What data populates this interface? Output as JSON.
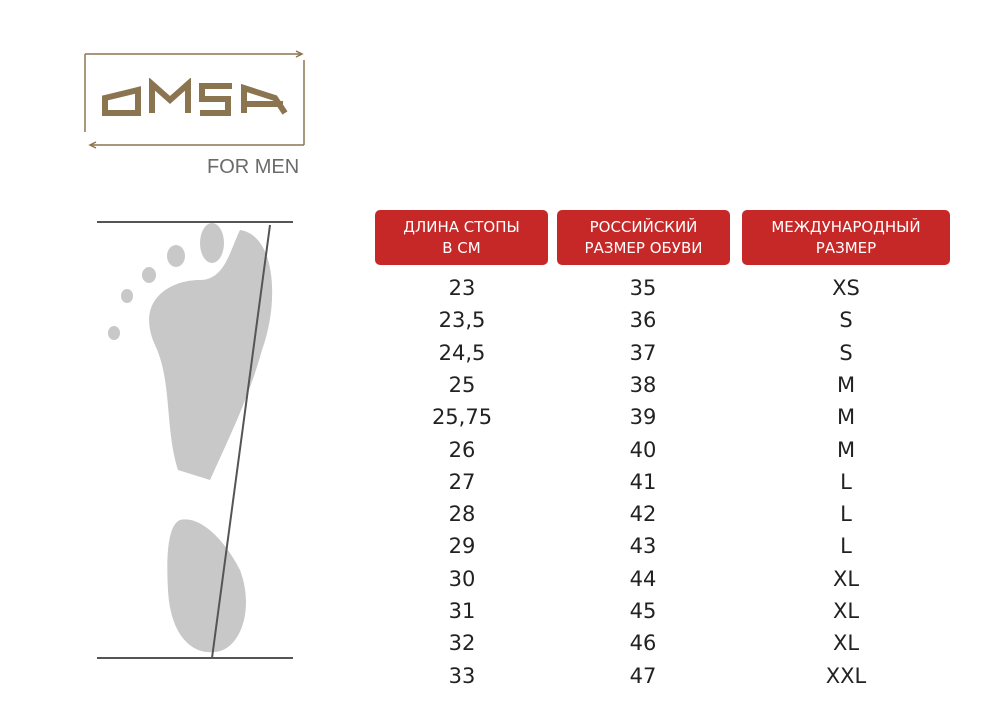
{
  "logo": {
    "brand": "OMSA",
    "subtitle": "FOR MEN",
    "color": "#8b7550"
  },
  "table": {
    "header_color": "#c62828",
    "headers": [
      "ДЛИНА СТОПЫ\nВ СМ",
      "РОССИЙСКИЙ\nРАЗМЕР ОБУВИ",
      "МЕЖДУНАРОДНЫЙ\nРАЗМЕР"
    ],
    "rows": [
      [
        "23",
        "35",
        "XS"
      ],
      [
        "23,5",
        "36",
        "S"
      ],
      [
        "24,5",
        "37",
        "S"
      ],
      [
        "25",
        "38",
        "M"
      ],
      [
        "25,75",
        "39",
        "M"
      ],
      [
        "26",
        "40",
        "M"
      ],
      [
        "27",
        "41",
        "L"
      ],
      [
        "28",
        "42",
        "L"
      ],
      [
        "29",
        "43",
        "L"
      ],
      [
        "30",
        "44",
        "XL"
      ],
      [
        "31",
        "45",
        "XL"
      ],
      [
        "32",
        "46",
        "XL"
      ],
      [
        "33",
        "47",
        "XXL"
      ]
    ]
  }
}
